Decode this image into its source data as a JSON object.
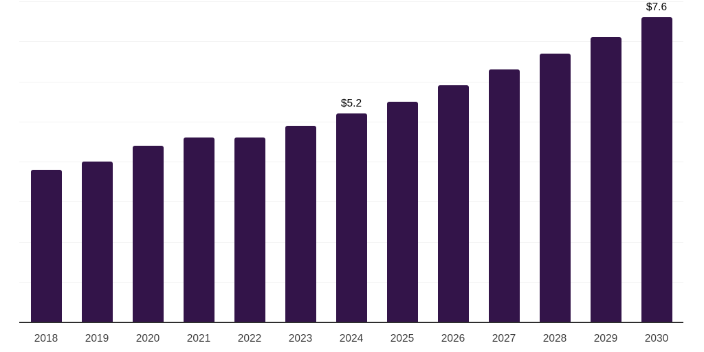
{
  "chart_data": {
    "type": "bar",
    "title": "",
    "xlabel": "",
    "ylabel": "",
    "categories": [
      "2018",
      "2019",
      "2020",
      "2021",
      "2022",
      "2023",
      "2024",
      "2025",
      "2026",
      "2027",
      "2028",
      "2029",
      "2030"
    ],
    "values": [
      3.8,
      4.0,
      4.4,
      4.6,
      4.6,
      4.9,
      5.2,
      5.5,
      5.9,
      6.3,
      6.7,
      7.1,
      7.6
    ],
    "bar_labels": [
      "",
      "",
      "",
      "",
      "",
      "",
      "$5.2",
      "",
      "",
      "",
      "",
      "",
      "$7.6"
    ],
    "ylim": [
      0,
      8
    ],
    "gridline_step": 1,
    "grid": "horizontal",
    "legend": "none",
    "y_tick_labels_visible": false,
    "bar_color": "#331449",
    "axis_line_color": "#2e2e2e",
    "gridline_color": "#f2f2f2",
    "tick_label_color": "#3d3d3d",
    "value_label_color": "#000000"
  }
}
